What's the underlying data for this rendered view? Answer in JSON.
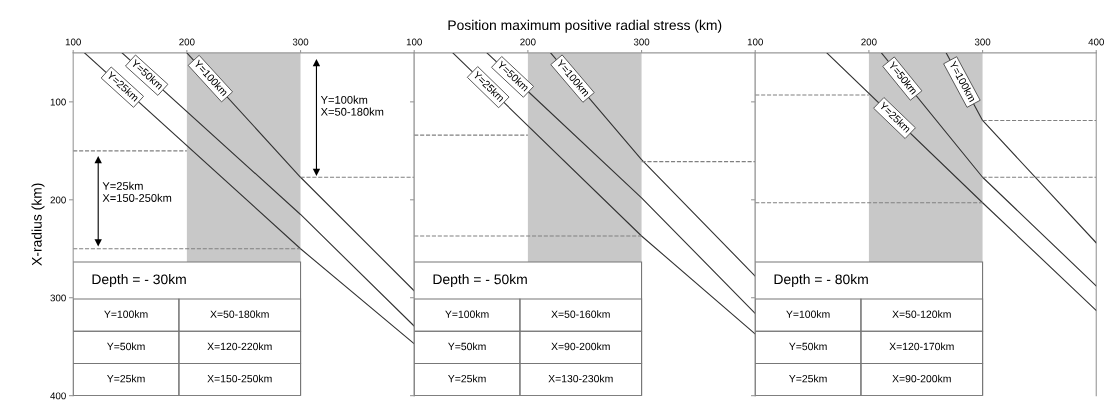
{
  "chart_data": [
    {
      "type": "line",
      "ylabel": "X-radius (km)",
      "xlim": [
        100,
        400
      ],
      "xticks": [
        100,
        200,
        300
      ],
      "ylim": [
        400,
        50
      ],
      "yticks": [
        100,
        200,
        300,
        400
      ],
      "series": [
        {
          "name": "Y=25km",
          "color": "#333333",
          "x": [
            110,
            300,
            400
          ],
          "values": [
            50,
            250,
            347
          ]
        },
        {
          "name": "Y=50km",
          "color": "#333333",
          "x": [
            143,
            300,
            400
          ],
          "values": [
            50,
            215,
            329
          ]
        },
        {
          "name": "Y=100km",
          "color": "#333333",
          "x": [
            200,
            300,
            400
          ],
          "values": [
            50,
            177,
            293
          ]
        },
        {
          "color": "#808080",
          "line_style": "dashed",
          "x": [
            100,
            200
          ],
          "values": [
            150,
            150
          ]
        },
        {
          "color": "#808080",
          "line_style": "dashed",
          "x": [
            100,
            300
          ],
          "values": [
            250,
            250
          ]
        },
        {
          "color": "#808080",
          "line_style": "dashed",
          "x": [
            300,
            400
          ],
          "values": [
            177,
            177
          ]
        },
        {
          "color": "#000000",
          "marker": "triangle",
          "x": [
            314,
            314
          ],
          "values": [
            60,
            172
          ]
        },
        {
          "color": "#000000",
          "marker": "triangle",
          "x": [
            122,
            122
          ],
          "values": [
            159,
            244
          ]
        }
      ],
      "bands": [
        {
          "axis": "x",
          "from": 200,
          "to": 300,
          "color": "#c8c8c8"
        }
      ],
      "annotations": [
        {
          "text": "Y=100km\nX=50-180km",
          "x": 314,
          "y": 105
        },
        {
          "text": "Y=25km\nX=150-250km",
          "x": 122,
          "y": 193
        },
        "Depth = - 30km",
        "Y=100km",
        "X=50-180km",
        "Y=50km",
        "X=120-220km",
        "Y=25km",
        "X=150-250km"
      ]
    },
    {
      "type": "line",
      "xlabel": "Position maximum positive radial stress (km)",
      "xlim": [
        100,
        400
      ],
      "xticks": [
        100,
        200,
        300
      ],
      "ylim": [
        400,
        50
      ],
      "yticks": [
        100,
        200,
        300,
        400
      ],
      "tick_labels": "x",
      "series": [
        {
          "name": "Y=25km",
          "color": "#333333",
          "x": [
            134,
            300,
            400
          ],
          "values": [
            50,
            237,
            337
          ]
        },
        {
          "name": "Y=50km",
          "color": "#333333",
          "x": [
            164,
            300,
            400
          ],
          "values": [
            50,
            198,
            316
          ]
        },
        {
          "name": "Y=100km",
          "color": "#333333",
          "x": [
            220,
            300,
            400
          ],
          "values": [
            50,
            159,
            278
          ]
        },
        {
          "color": "#808080",
          "line_style": "dashed",
          "x": [
            100,
            200
          ],
          "values": [
            134,
            134
          ]
        },
        {
          "color": "#808080",
          "line_style": "dashed",
          "x": [
            100,
            300
          ],
          "values": [
            237,
            237
          ]
        },
        {
          "color": "#808080",
          "line_style": "dashed",
          "x": [
            300,
            400
          ],
          "values": [
            161,
            161
          ]
        }
      ],
      "bands": [
        {
          "axis": "x",
          "from": 200,
          "to": 300,
          "color": "#c8c8c8"
        }
      ],
      "annotations": [
        "Depth = - 50km",
        "Y=100km",
        "X=50-160km",
        "Y=50km",
        "X=90-200km",
        "Y=25km",
        "X=130-230km"
      ]
    },
    {
      "type": "line",
      "xlim": [
        100,
        400
      ],
      "xticks": [
        100,
        200,
        300,
        400
      ],
      "ylim": [
        400,
        50
      ],
      "yticks": [
        100,
        200,
        300,
        400
      ],
      "tick_labels": "x",
      "series": [
        {
          "name": "Y=25km",
          "color": "#333333",
          "x": [
            163,
            300,
            400
          ],
          "values": [
            50,
            203,
            313
          ]
        },
        {
          "name": "Y=50km",
          "color": "#333333",
          "x": [
            211,
            300,
            400
          ],
          "values": [
            50,
            177,
            288
          ]
        },
        {
          "name": "Y=100km",
          "color": "#333333",
          "x": [
            268,
            300,
            400
          ],
          "values": [
            50,
            119,
            244
          ]
        },
        {
          "color": "#808080",
          "line_style": "dashed",
          "x": [
            100,
            200
          ],
          "values": [
            93,
            93
          ]
        },
        {
          "color": "#808080",
          "line_style": "dashed",
          "x": [
            100,
            300
          ],
          "values": [
            203,
            203
          ]
        },
        {
          "color": "#808080",
          "line_style": "dashed",
          "x": [
            300,
            400
          ],
          "values": [
            119,
            119
          ]
        },
        {
          "color": "#808080",
          "line_style": "dashed",
          "x": [
            300,
            400
          ],
          "values": [
            177,
            177
          ]
        }
      ],
      "bands": [
        {
          "axis": "x",
          "from": 200,
          "to": 300,
          "color": "#c8c8c8"
        }
      ],
      "annotations": [
        "Depth = - 80km",
        "Y=100km",
        "X=50-120km",
        "Y=50km",
        "X=120-170km",
        "Y=25km",
        "X=90-200km"
      ]
    }
  ]
}
